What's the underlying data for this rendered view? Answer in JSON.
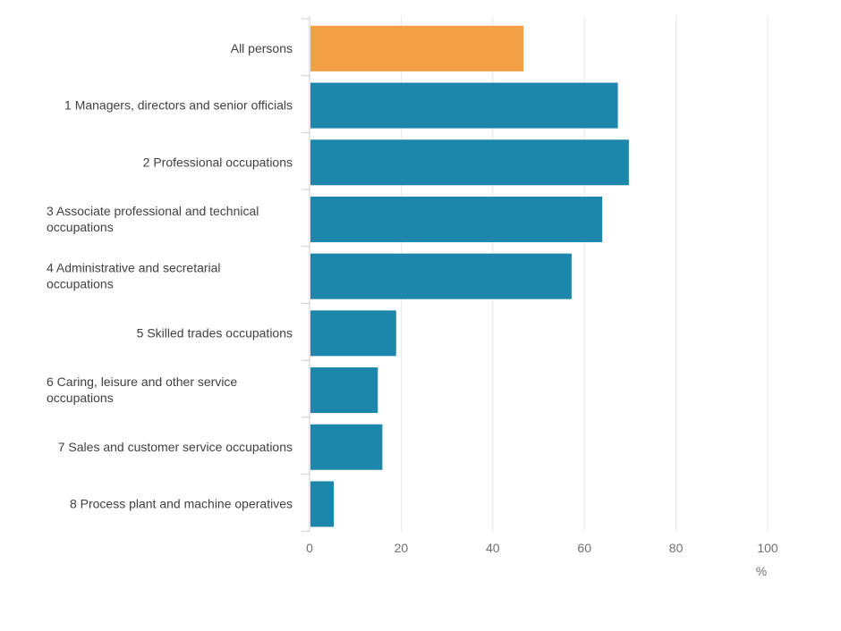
{
  "chart_data": {
    "type": "bar",
    "orientation": "horizontal",
    "categories": [
      "All persons",
      "1 Managers, directors and senior officials",
      "2 Professional occupations",
      "3 Associate professional and technical occupations",
      "4 Administrative and secretarial occupations",
      "5 Skilled trades occupations",
      "6 Caring, leisure and other service occupations",
      "7 Sales and customer service occupations",
      "8 Process plant and machine operatives"
    ],
    "category_lines": [
      [
        "All persons"
      ],
      [
        "1 Managers, directors and senior officials"
      ],
      [
        "2 Professional occupations"
      ],
      [
        "3 Associate professional and technical",
        "occupations"
      ],
      [
        "4 Administrative and secretarial",
        "occupations"
      ],
      [
        "5 Skilled trades occupations"
      ],
      [
        "6 Caring, leisure and other service",
        "occupations"
      ],
      [
        "7 Sales and customer service occupations"
      ],
      [
        "8 Process plant and machine operatives"
      ]
    ],
    "values": [
      46.7,
      67.3,
      69.7,
      63.9,
      57.2,
      18.9,
      14.9,
      15.9,
      5.3
    ],
    "highlight_index": 0,
    "colors": {
      "highlight": "#F39F45",
      "bar": "#1C86AB",
      "grid": "#E8E8E8",
      "axis": "#CCCCCC"
    },
    "xlim": [
      0,
      100
    ],
    "xticks": [
      "0",
      "20",
      "40",
      "60",
      "80",
      "100"
    ],
    "xtick_values": [
      0,
      20,
      40,
      60,
      80,
      100
    ],
    "xlabel": "%",
    "title": "",
    "grid": true
  }
}
